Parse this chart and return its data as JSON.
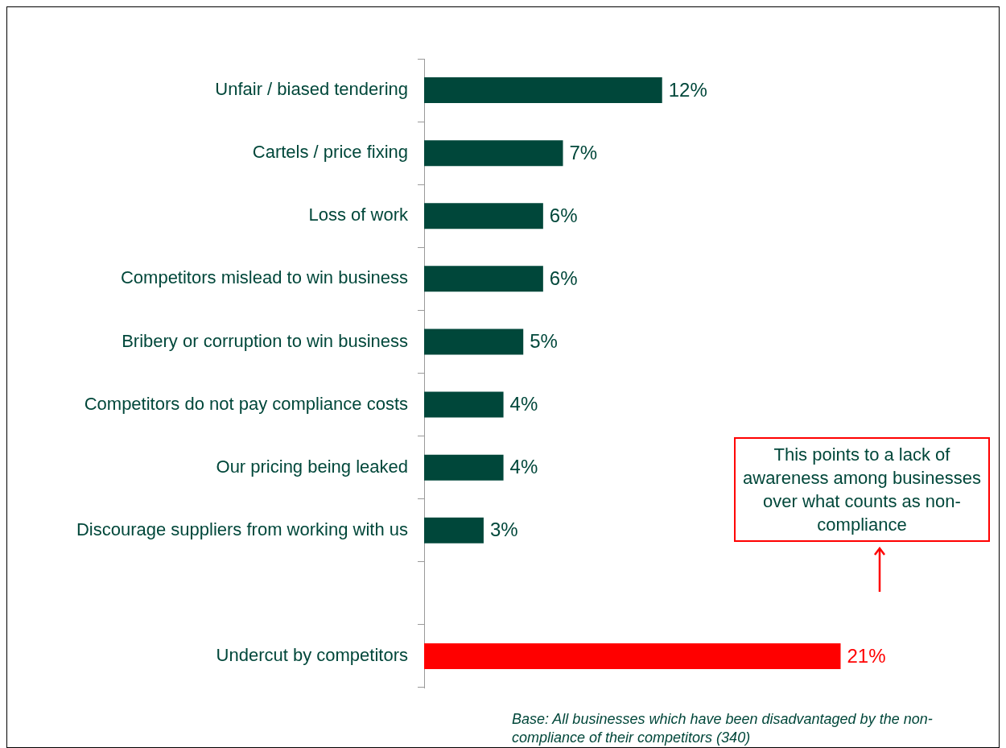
{
  "chart_data": {
    "type": "bar",
    "orientation": "horizontal",
    "categories": [
      "Unfair / biased tendering",
      "Cartels / price fixing",
      "Loss of work",
      "Competitors mislead to win business",
      "Bribery or corruption to win business",
      "Competitors do not pay compliance costs",
      "Our pricing being leaked",
      "Discourage suppliers from working with us",
      null,
      "Undercut by competitors"
    ],
    "values": [
      12,
      7,
      6,
      6,
      5,
      4,
      4,
      3,
      null,
      21
    ],
    "colors": [
      "#00473a",
      "#00473a",
      "#00473a",
      "#00473a",
      "#00473a",
      "#00473a",
      "#00473a",
      "#00473a",
      "#00473a",
      "#ff0000"
    ],
    "value_labels": [
      "12%",
      "7%",
      "6%",
      "6%",
      "5%",
      "4%",
      "4%",
      "3%",
      null,
      "21%"
    ],
    "annotations": [
      "This points to a lack of awareness among businesses over what counts as non-compliance",
      "Base: All businesses which have been disadvantaged by the non-compliance of their competitors (340)"
    ],
    "grid": false,
    "legend": false
  }
}
